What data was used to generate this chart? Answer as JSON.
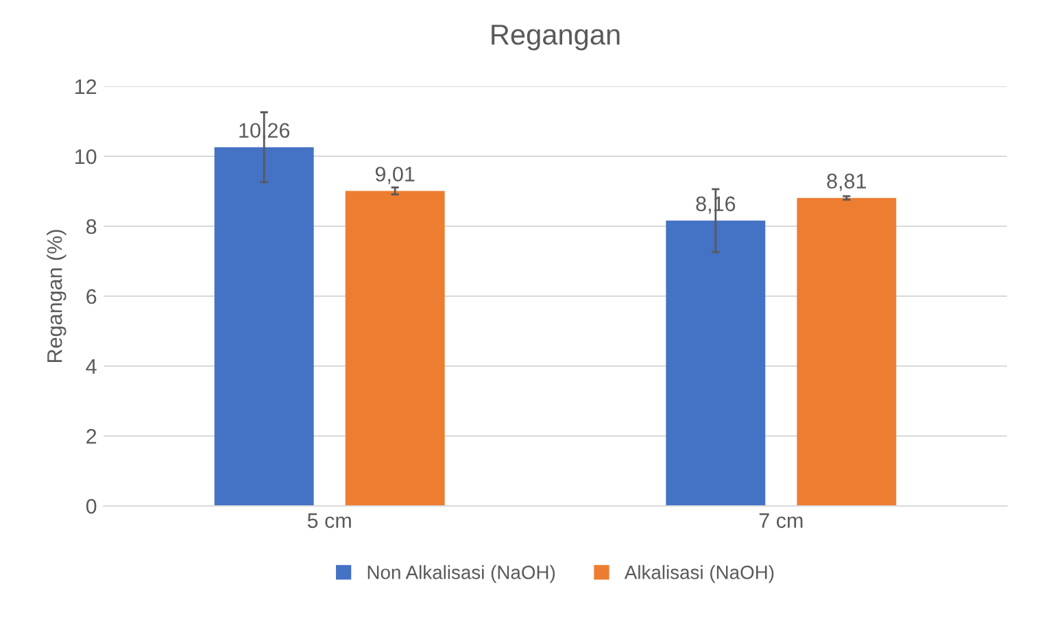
{
  "chart_data": {
    "type": "bar",
    "title": "Regangan",
    "ylabel": "Regangan (%)",
    "categories": [
      "5 cm",
      "7 cm"
    ],
    "series": [
      {
        "name": "Non Alkalisasi (NaOH)",
        "color": "#4472c4",
        "values": [
          10.26,
          8.16
        ],
        "value_labels": [
          "10,26",
          "8,16"
        ],
        "errors": [
          1.0,
          0.9
        ]
      },
      {
        "name": "Alkalisasi (NaOH)",
        "color": "#ed7d31",
        "values": [
          9.01,
          8.81
        ],
        "value_labels": [
          "9,01",
          "8,81"
        ],
        "errors": [
          0.1,
          0.05
        ]
      }
    ],
    "ylim": [
      0,
      12
    ],
    "yticks": [
      0,
      2,
      4,
      6,
      8,
      10,
      12
    ],
    "grid": "y",
    "legend": "bottom"
  }
}
